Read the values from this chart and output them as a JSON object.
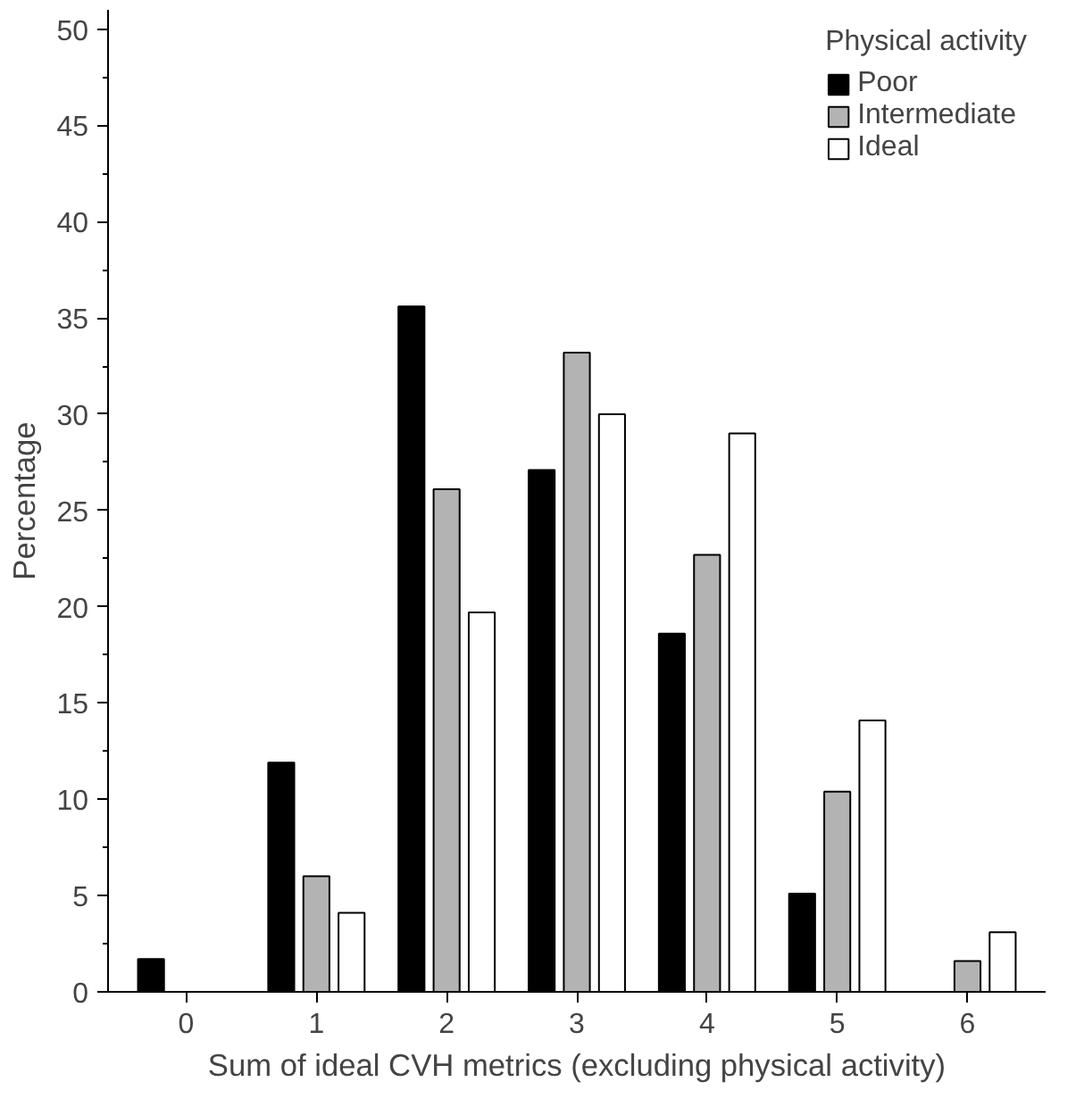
{
  "chart_data": {
    "type": "bar",
    "xlabel": "Sum of ideal CVH metrics (excluding physical activity)",
    "ylabel": "Percentage",
    "legend_title": "Physical activity",
    "legend": "top right",
    "grid": false,
    "categories": [
      "0",
      "1",
      "2",
      "3",
      "4",
      "5",
      "6"
    ],
    "ylim": [
      0,
      51
    ],
    "yticks": [
      0,
      5,
      10,
      15,
      20,
      25,
      30,
      35,
      40,
      45,
      50
    ],
    "series": [
      {
        "name": "Poor",
        "color": "#000000",
        "values": [
          1.7,
          11.9,
          35.6,
          27.1,
          18.6,
          5.1,
          null
        ]
      },
      {
        "name": "Intermediate",
        "color": "#b3b3b3",
        "values": [
          null,
          6.0,
          26.1,
          33.2,
          22.7,
          10.4,
          1.6
        ]
      },
      {
        "name": "Ideal",
        "color": "#ffffff",
        "values": [
          null,
          4.1,
          19.7,
          30.0,
          29.0,
          14.1,
          3.1
        ]
      }
    ]
  }
}
